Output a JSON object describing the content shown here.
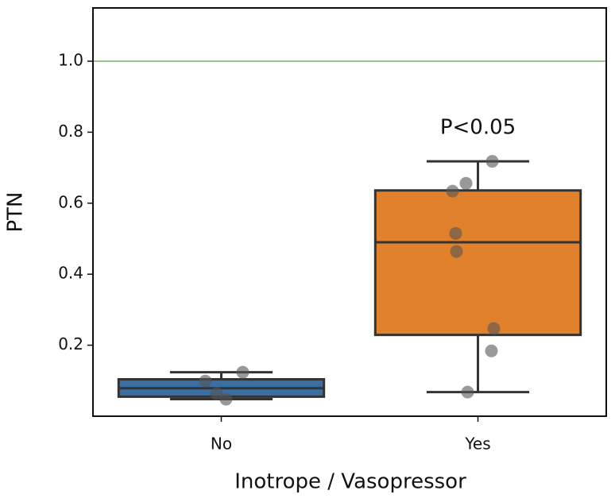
{
  "chart_data": {
    "type": "box",
    "xlabel": "Inotrope / Vasopressor",
    "ylabel": "PTN",
    "categories": [
      "No",
      "Yes"
    ],
    "ylim": [
      0,
      1.15
    ],
    "yticks": [
      0.2,
      0.4,
      0.6,
      0.8,
      {
        "value": 1,
        "label": "1.0"
      }
    ],
    "hline": {
      "value": 1,
      "color": "#8fca8f"
    },
    "annotation": {
      "text": "P<0.05",
      "category": 1
    },
    "boxes": [
      {
        "color": "#3a6fa3",
        "whisker_low": 0.048,
        "q1": 0.055,
        "median": 0.079,
        "q3": 0.104,
        "whisker_high": 0.124,
        "points": [
          0.099,
          0.124,
          0.064,
          0.048
        ]
      },
      {
        "color": "#e1812c",
        "whisker_low": 0.068,
        "q1": 0.229,
        "median": 0.49,
        "q3": 0.636,
        "whisker_high": 0.718,
        "points": [
          0.718,
          0.656,
          0.634,
          0.515,
          0.464,
          0.247,
          0.184,
          0.068
        ]
      }
    ],
    "point_color": "#555555"
  }
}
